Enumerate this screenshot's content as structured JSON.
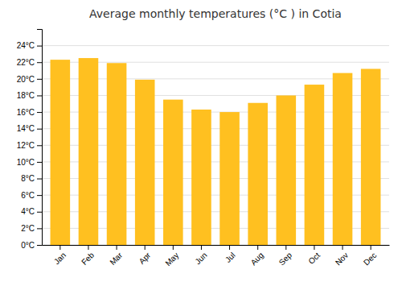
{
  "chart_data": {
    "type": "bar",
    "title": "Average monthly temperatures (°C ) in Cotia",
    "categories": [
      "Jan",
      "Feb",
      "Mar",
      "Apr",
      "May",
      "Jun",
      "Jul",
      "Aug",
      "Sep",
      "Oct",
      "Nov",
      "Dec"
    ],
    "values": [
      22.3,
      22.5,
      21.9,
      19.9,
      17.5,
      16.3,
      16.0,
      17.1,
      18.0,
      19.3,
      20.7,
      21.2
    ],
    "color": "#FFC020",
    "ylim": [
      0,
      26
    ],
    "yticks": [
      {
        "value": 0,
        "label": "0°C"
      },
      {
        "value": 2,
        "label": "2°C"
      },
      {
        "value": 4,
        "label": "4°C"
      },
      {
        "value": 6,
        "label": "6°C"
      },
      {
        "value": 8,
        "label": "8°C"
      },
      {
        "value": 10,
        "label": "10°C"
      },
      {
        "value": 12,
        "label": "12°C"
      },
      {
        "value": 14,
        "label": "14°C"
      },
      {
        "value": 16,
        "label": "16°C"
      },
      {
        "value": 18,
        "label": "18°C"
      },
      {
        "value": 20,
        "label": "20°C"
      },
      {
        "value": 22,
        "label": "22°C"
      },
      {
        "value": 24,
        "label": "24°C"
      }
    ],
    "grid": true
  }
}
